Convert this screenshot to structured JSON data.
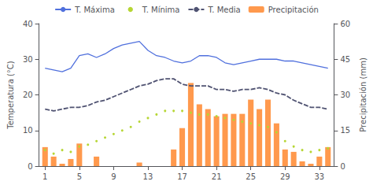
{
  "chart_data": {
    "type": "line",
    "ylabel": "Temperatura (°C)",
    "y2label": "Precipitación (mm)",
    "x": [
      1,
      2,
      3,
      4,
      5,
      6,
      7,
      8,
      9,
      10,
      11,
      12,
      13,
      14,
      15,
      16,
      17,
      18,
      19,
      20,
      21,
      22,
      23,
      24,
      25,
      26,
      27,
      28,
      29,
      30,
      31,
      32,
      33,
      34
    ],
    "series": [
      {
        "name": "T. Máxima",
        "type": "line",
        "line_style": "solid",
        "values": [
          27.5,
          27.0,
          26.5,
          27.5,
          31.0,
          31.5,
          30.5,
          31.5,
          33.0,
          34.0,
          34.5,
          35.0,
          32.5,
          31.0,
          30.5,
          29.5,
          29.0,
          29.5,
          31.0,
          31.0,
          30.5,
          29.0,
          28.5,
          29.0,
          29.5,
          30.0,
          30.0,
          30.0,
          29.5,
          29.5,
          29.0,
          28.5,
          28.0,
          27.5
        ]
      },
      {
        "name": "T. Mínima",
        "type": "line",
        "line_style": "none",
        "marker": "dot",
        "values": [
          4.5,
          3.5,
          4.5,
          4.0,
          5.5,
          6.0,
          7.0,
          8.0,
          9.0,
          10.0,
          11.0,
          12.5,
          13.5,
          14.5,
          15.5,
          15.5,
          15.5,
          15.0,
          14.5,
          14.5,
          14.0,
          13.5,
          13.0,
          12.5,
          12.0,
          11.5,
          11.0,
          9.5,
          7.0,
          5.5,
          4.5,
          4.0,
          4.5,
          5.0
        ]
      },
      {
        "name": "T. Media",
        "type": "line",
        "line_style": "dashed",
        "values": [
          16.0,
          15.5,
          16.0,
          16.5,
          16.5,
          17.0,
          18.0,
          18.5,
          19.5,
          20.5,
          21.5,
          22.5,
          23.0,
          24.0,
          24.5,
          24.5,
          23.0,
          22.5,
          22.5,
          22.5,
          21.5,
          21.5,
          21.0,
          21.5,
          21.5,
          22.0,
          21.5,
          20.5,
          20.0,
          18.5,
          17.5,
          16.5,
          16.5,
          16.0
        ]
      },
      {
        "name": "Precipitación",
        "type": "bar",
        "axis": "y2",
        "values": [
          8,
          4,
          1,
          3,
          9.5,
          0,
          4,
          0,
          0,
          0,
          0,
          1.5,
          0,
          0,
          0,
          7,
          16,
          35,
          26,
          24,
          21,
          22,
          22,
          22,
          28,
          24,
          28,
          18,
          7,
          6,
          2,
          1,
          4,
          8
        ]
      }
    ],
    "xlim": [
      0.3,
      34.7
    ],
    "xticks": [
      1,
      5,
      9,
      13,
      17,
      21,
      25,
      29,
      33
    ],
    "ylim": [
      0,
      40
    ],
    "yticks": [
      0,
      10,
      20,
      30,
      40
    ],
    "y2lim": [
      0,
      60
    ],
    "y2ticks": [
      0,
      15,
      30,
      45,
      60
    ],
    "grid": false,
    "legend": "top"
  }
}
